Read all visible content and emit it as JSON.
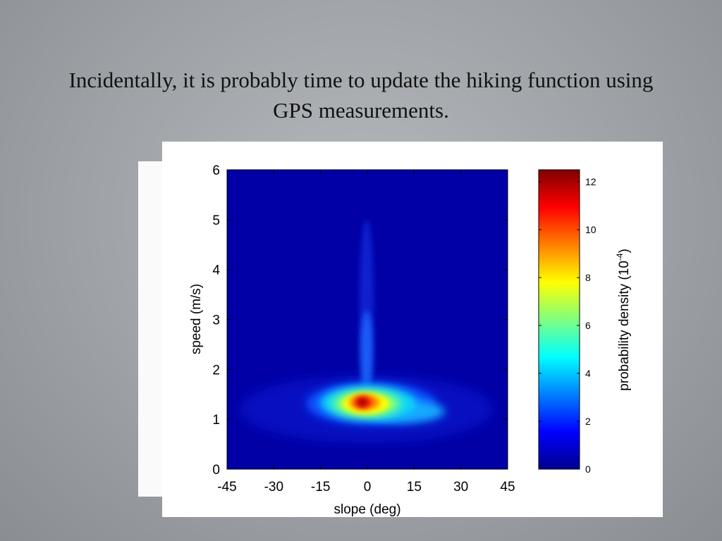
{
  "slide": {
    "title_line1": "Incidentally, it is probably time to update the hiking function using",
    "title_line2": "GPS measurements."
  },
  "chart_data": {
    "type": "heatmap",
    "title": "",
    "xlabel": "slope (deg)",
    "ylabel": "speed (m/s)",
    "xlim": [
      -45,
      45
    ],
    "ylim": [
      0,
      6
    ],
    "xticks": [
      "-45",
      "-30",
      "-15",
      "0",
      "15",
      "30",
      "45"
    ],
    "yticks": [
      "0",
      "1",
      "2",
      "3",
      "4",
      "5",
      "6"
    ],
    "colorbar": {
      "label": "probability density (10",
      "label_exponent": "-4",
      "label_close": ")",
      "range": [
        0,
        12.5
      ],
      "ticks": [
        "0",
        "2",
        "4",
        "6",
        "8",
        "10",
        "12"
      ],
      "colormap": "jet"
    },
    "density_peak": {
      "slope_deg": -1,
      "speed_ms": 1.3,
      "value": 12.5
    },
    "density_features": [
      {
        "feature": "main blob",
        "slope_center_deg": 0,
        "speed_center_ms": 1.3,
        "peak_value": 12.5
      },
      {
        "feature": "vertical plume",
        "slope_center_deg": 0,
        "speed_range_ms": [
          1.6,
          5.0
        ],
        "value_range": [
          0.3,
          3.5
        ]
      },
      {
        "feature": "downhill-right tail",
        "slope_range_deg": [
          5,
          25
        ],
        "speed_center_ms": 1.1,
        "value_range": [
          2,
          6
        ]
      }
    ]
  }
}
